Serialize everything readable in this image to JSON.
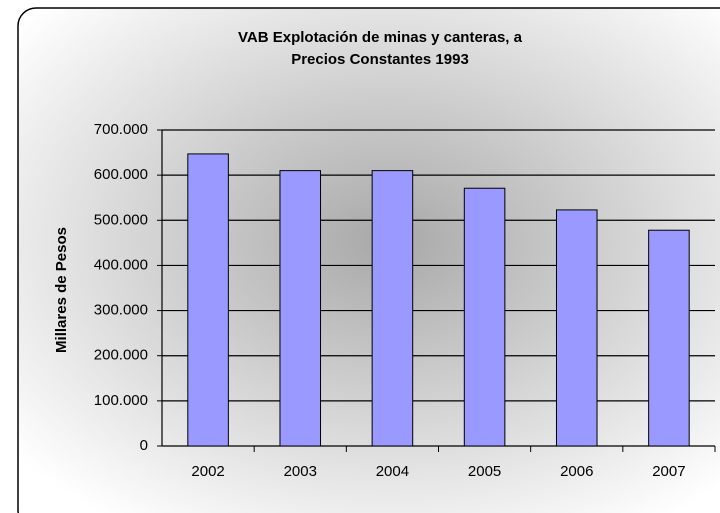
{
  "chart_data": {
    "type": "bar",
    "title": "VAB Explotación de minas y canteras, a Precios Constantes 1993",
    "y_label": "Millares de Pesos",
    "categories": [
      "2002",
      "2003",
      "2004",
      "2005",
      "2006",
      "2007"
    ],
    "values": [
      647000,
      610000,
      610000,
      571000,
      523000,
      478000
    ],
    "color": "#9999ff",
    "ylim": [
      0,
      700000
    ],
    "yticks": [
      0,
      {
        "value": 100000,
        "label": "100.000"
      },
      {
        "value": 200000,
        "label": "200.000"
      },
      {
        "value": 300000,
        "label": "300.000"
      },
      {
        "value": 400000,
        "label": "400.000"
      },
      {
        "value": 500000,
        "label": "500.000"
      },
      {
        "value": 600000,
        "label": "600.000"
      },
      {
        "value": 700000,
        "label": "700.000"
      }
    ],
    "grid": true
  }
}
